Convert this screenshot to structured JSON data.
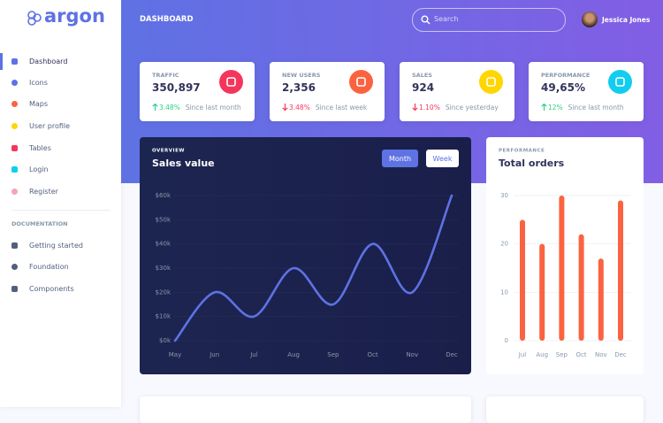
{
  "brand": "argon",
  "sidebar": {
    "nav": [
      "Dashboard",
      "Icons",
      "Maps",
      "User profile",
      "Tables",
      "Login",
      "Register"
    ],
    "doc_heading": "DOCUMENTATION",
    "docs": [
      "Getting started",
      "Foundation",
      "Components"
    ]
  },
  "header": {
    "title": "DASHBOARD",
    "search_placeholder": "Search",
    "user": "Jessica Jones"
  },
  "stats": [
    {
      "title": "TRAFFIC",
      "value": "350,897",
      "trend": "up",
      "change": "3.48%",
      "note": "Since last month",
      "color": "#f5365c"
    },
    {
      "title": "NEW USERS",
      "value": "2,356",
      "trend": "down",
      "change": "3.48%",
      "note": "Since last week",
      "color": "#fb6340"
    },
    {
      "title": "SALES",
      "value": "924",
      "trend": "down",
      "change": "1.10%",
      "note": "Since yesterday",
      "color": "#ffd600"
    },
    {
      "title": "PERFORMANCE",
      "value": "49,65%",
      "trend": "up",
      "change": "12%",
      "note": "Since last month",
      "color": "#11cdef"
    }
  ],
  "chart_data": [
    {
      "type": "line",
      "overline": "OVERVIEW",
      "title": "Sales value",
      "buttons": [
        "Month",
        "Week"
      ],
      "categories": [
        "May",
        "Jun",
        "Jul",
        "Aug",
        "Sep",
        "Oct",
        "Nov",
        "Dec"
      ],
      "values": [
        0,
        20,
        10,
        30,
        15,
        40,
        20,
        60
      ],
      "color": "#5e72e4",
      "ylim": [
        0,
        60
      ],
      "yticks": [
        {
          "value": 0,
          "label": "$0k"
        },
        {
          "value": 10,
          "label": "$10k"
        },
        {
          "value": 20,
          "label": "$20k"
        },
        {
          "value": 30,
          "label": "$30k"
        },
        {
          "value": 40,
          "label": "$40k"
        },
        {
          "value": 50,
          "label": "$50k"
        },
        {
          "value": 60,
          "label": "$60k"
        }
      ],
      "grid": true
    },
    {
      "type": "bar",
      "overline": "PERFORMANCE",
      "title": "Total orders",
      "categories": [
        "Jul",
        "Aug",
        "Sep",
        "Oct",
        "Nov",
        "Dec"
      ],
      "values": [
        25,
        20,
        30,
        22,
        17,
        29
      ],
      "color": "#fb6340",
      "ylim": [
        0,
        30
      ],
      "yticks": [
        0,
        10,
        20,
        30
      ],
      "grid": true
    }
  ]
}
